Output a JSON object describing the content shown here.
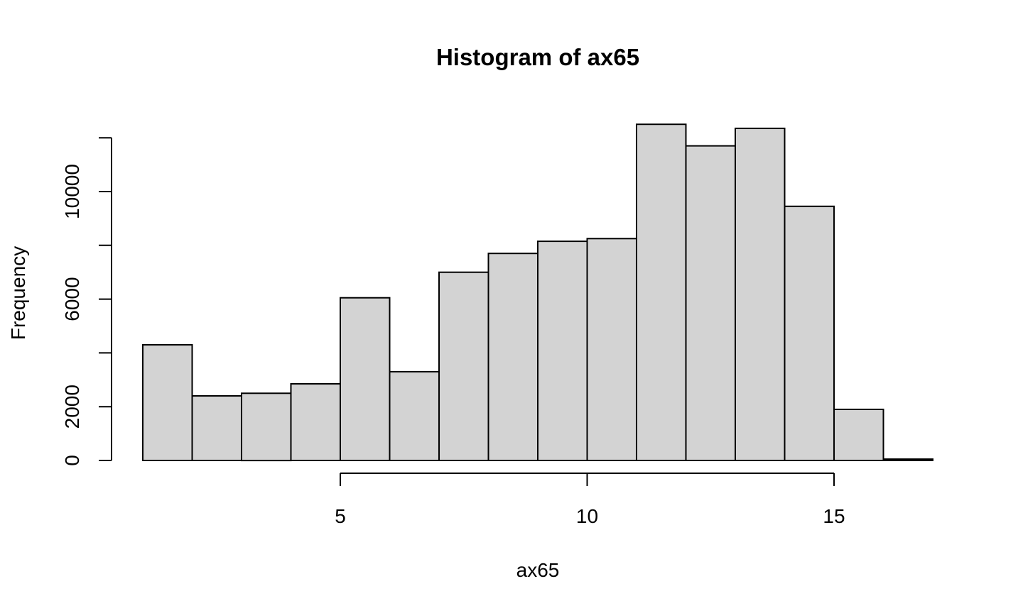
{
  "chart_data": {
    "type": "bar",
    "title": "Histogram of ax65",
    "xlabel": "ax65",
    "ylabel": "Frequency",
    "bins": [
      {
        "start": 1,
        "end": 2,
        "count": 4300
      },
      {
        "start": 2,
        "end": 3,
        "count": 2400
      },
      {
        "start": 3,
        "end": 4,
        "count": 2500
      },
      {
        "start": 4,
        "end": 5,
        "count": 2850
      },
      {
        "start": 5,
        "end": 6,
        "count": 6050
      },
      {
        "start": 6,
        "end": 7,
        "count": 3300
      },
      {
        "start": 7,
        "end": 8,
        "count": 7000
      },
      {
        "start": 8,
        "end": 9,
        "count": 7700
      },
      {
        "start": 9,
        "end": 10,
        "count": 8150
      },
      {
        "start": 10,
        "end": 11,
        "count": 8250
      },
      {
        "start": 11,
        "end": 12,
        "count": 12500
      },
      {
        "start": 12,
        "end": 13,
        "count": 11700
      },
      {
        "start": 13,
        "end": 14,
        "count": 12350
      },
      {
        "start": 14,
        "end": 15,
        "count": 9450
      },
      {
        "start": 15,
        "end": 16,
        "count": 1900
      },
      {
        "start": 16,
        "end": 17,
        "count": 50
      }
    ],
    "xlim": [
      1,
      17
    ],
    "ylim": [
      0,
      12500
    ],
    "x_ticks": [
      5,
      10,
      15
    ],
    "y_ticks": [
      0,
      2000,
      6000,
      10000
    ],
    "y_tick_marks": [
      0,
      2000,
      4000,
      6000,
      8000,
      10000,
      12000
    ],
    "bar_fill": "#d3d3d3",
    "grid": false,
    "legend": "none"
  }
}
